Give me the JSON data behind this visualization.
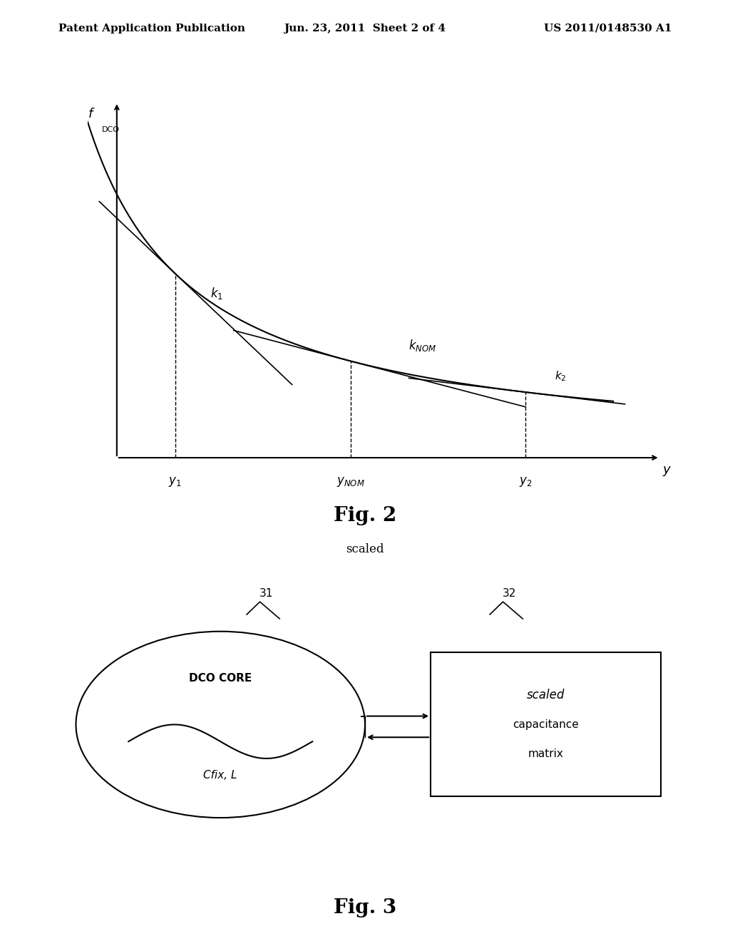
{
  "bg_color": "#ffffff",
  "header_left": "Patent Application Publication",
  "header_center": "Jun. 23, 2011  Sheet 2 of 4",
  "header_right": "US 2011/0148530 A1",
  "fig2_label": "Fig. 2",
  "fig2_sublabel": "scaled",
  "fig3_label": "Fig. 3",
  "ylabel_text": "f",
  "ylabel_sub": "DCO",
  "xlabel_text": "y",
  "y1_label": "y₁",
  "ynom_label": "yₙ₀ₘ",
  "y2_label": "y₂",
  "k1_label": "k₁",
  "knom_label": "kₙₒₘ",
  "k2_label": "k₂",
  "label31": "31",
  "label32": "32",
  "dco_core_text1": "DCO CORE",
  "dco_core_text2": "Cfix, L",
  "cap_matrix_line1": "scaled",
  "cap_matrix_line2": "capacitance",
  "cap_matrix_line3": "matrix"
}
